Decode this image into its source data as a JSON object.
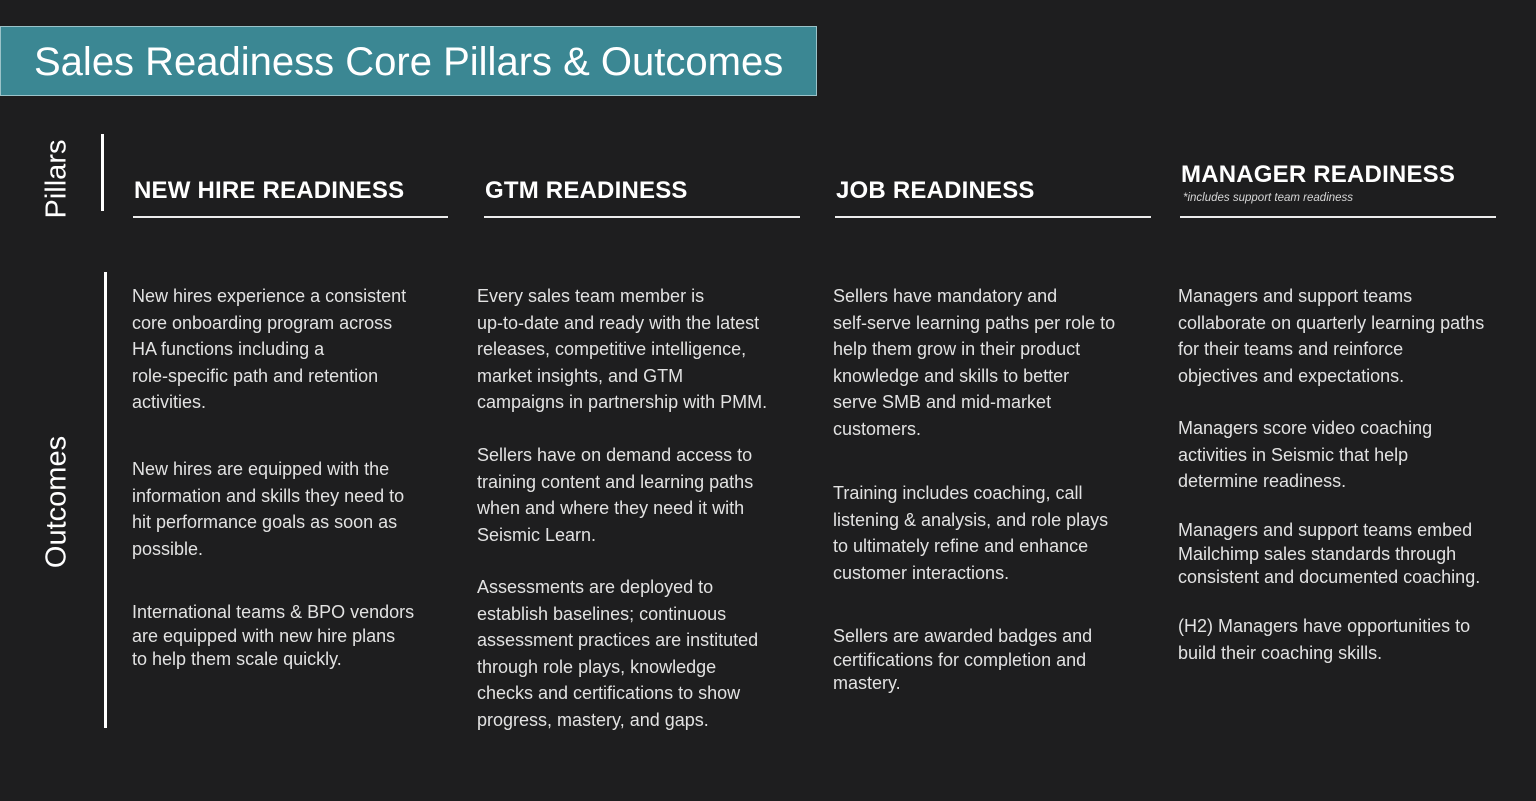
{
  "title": "Sales Readiness Core Pillars & Outcomes",
  "side_labels": {
    "pillars": "Pillars",
    "outcomes": "Outcomes"
  },
  "pillars": [
    {
      "title": "NEW HIRE READINESS",
      "note": ""
    },
    {
      "title": "GTM READINESS",
      "note": ""
    },
    {
      "title": "JOB READINESS",
      "note": ""
    },
    {
      "title": "MANAGER READINESS",
      "note": "*includes support team readiness"
    }
  ],
  "outcomes": [
    [
      [
        "New hires experience a consistent",
        "core onboarding program across",
        "HA functions including a",
        "role-specific path and retention",
        "activities."
      ],
      [
        "New hires are equipped with the",
        "information and skills they need to",
        "hit performance goals as soon as",
        "possible."
      ],
      [
        "International teams & BPO vendors",
        "are equipped with new hire plans",
        "to help them scale quickly."
      ]
    ],
    [
      [
        "Every sales team member is",
        "up-to-date and ready with the latest",
        "releases, competitive intelligence,",
        "market insights, and GTM",
        "campaigns in partnership with PMM."
      ],
      [
        "Sellers have on demand access to",
        "training content and learning paths",
        "when and where they need it with",
        "Seismic Learn."
      ],
      [
        "Assessments are deployed to",
        "establish baselines; continuous",
        "assessment practices are instituted",
        "through role plays, knowledge",
        "checks and certifications to show",
        "progress, mastery, and gaps."
      ]
    ],
    [
      [
        "Sellers have mandatory and",
        "self-serve learning paths per role to",
        "help them grow in their product",
        "knowledge and skills to better",
        "serve SMB and mid-market",
        "customers."
      ],
      [
        "Training includes coaching, call",
        "listening & analysis, and role plays",
        "to ultimately refine and enhance",
        "customer interactions."
      ],
      [
        "Sellers are awarded badges and",
        "certifications for completion and",
        "mastery."
      ]
    ],
    [
      [
        "Managers and support teams",
        "collaborate on quarterly learning paths",
        "for their teams and reinforce",
        "objectives and expectations."
      ],
      [
        "Managers score video coaching",
        "activities in Seismic that help",
        "determine readiness."
      ],
      [
        "Managers and support teams embed",
        "Mailchimp sales standards through",
        "consistent and documented coaching."
      ],
      [
        "(H2) Managers have opportunities to",
        "build their coaching skills."
      ]
    ]
  ]
}
